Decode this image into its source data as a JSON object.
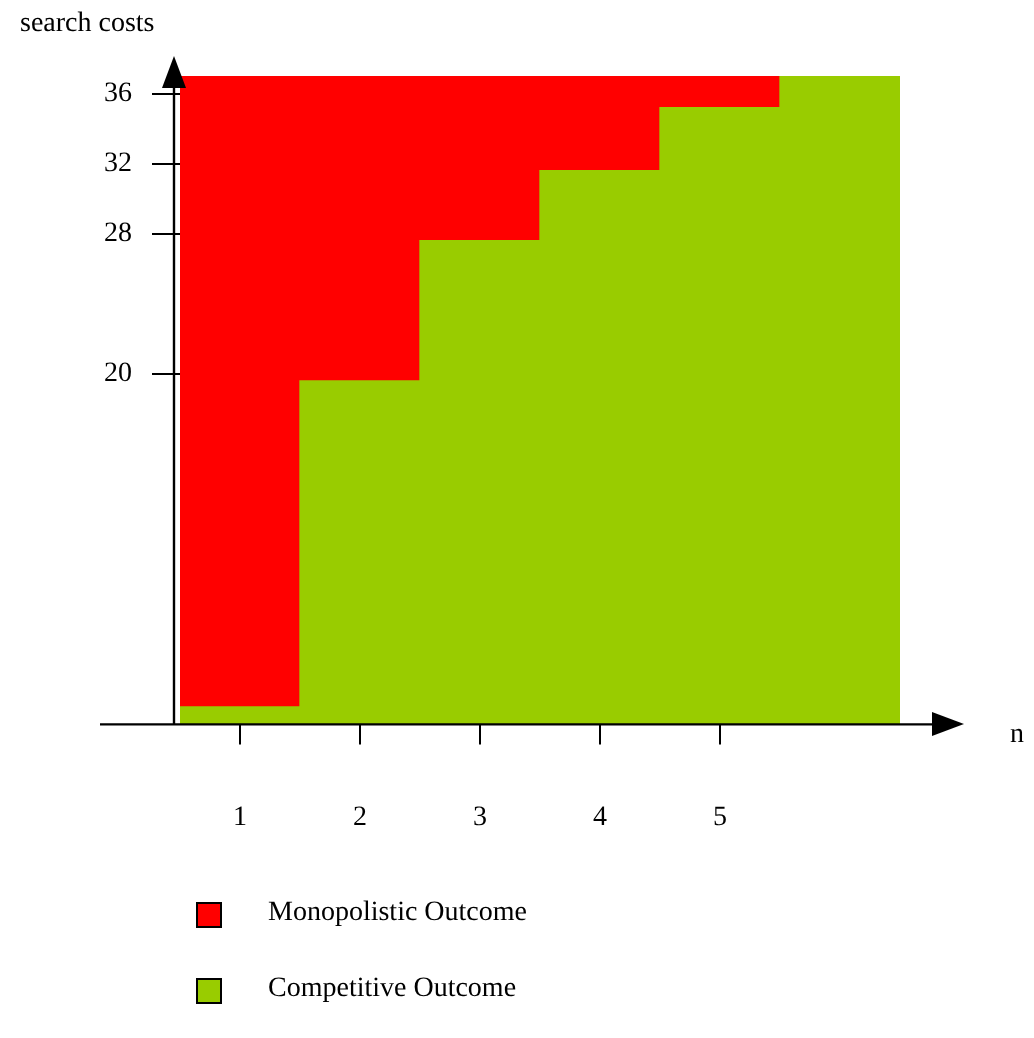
{
  "chart_data": {
    "type": "bar",
    "stacked": true,
    "xlabel": "n",
    "ylabel": "search costs",
    "categories": [
      "1",
      "2",
      "3",
      "4",
      "5",
      null
    ],
    "series": [
      {
        "name": "Competitive Outcome",
        "color": "#99cc00",
        "values": [
          1,
          19.6,
          27.6,
          31.6,
          35.2,
          37
        ]
      },
      {
        "name": "Monopolistic Outcome",
        "color": "#ff0000",
        "values": [
          36,
          17.4,
          9.4,
          5.4,
          1.8,
          0
        ]
      }
    ],
    "ylim": [
      0,
      37
    ],
    "yticks": [
      20,
      28,
      32,
      36
    ],
    "legend": "bottom"
  }
}
